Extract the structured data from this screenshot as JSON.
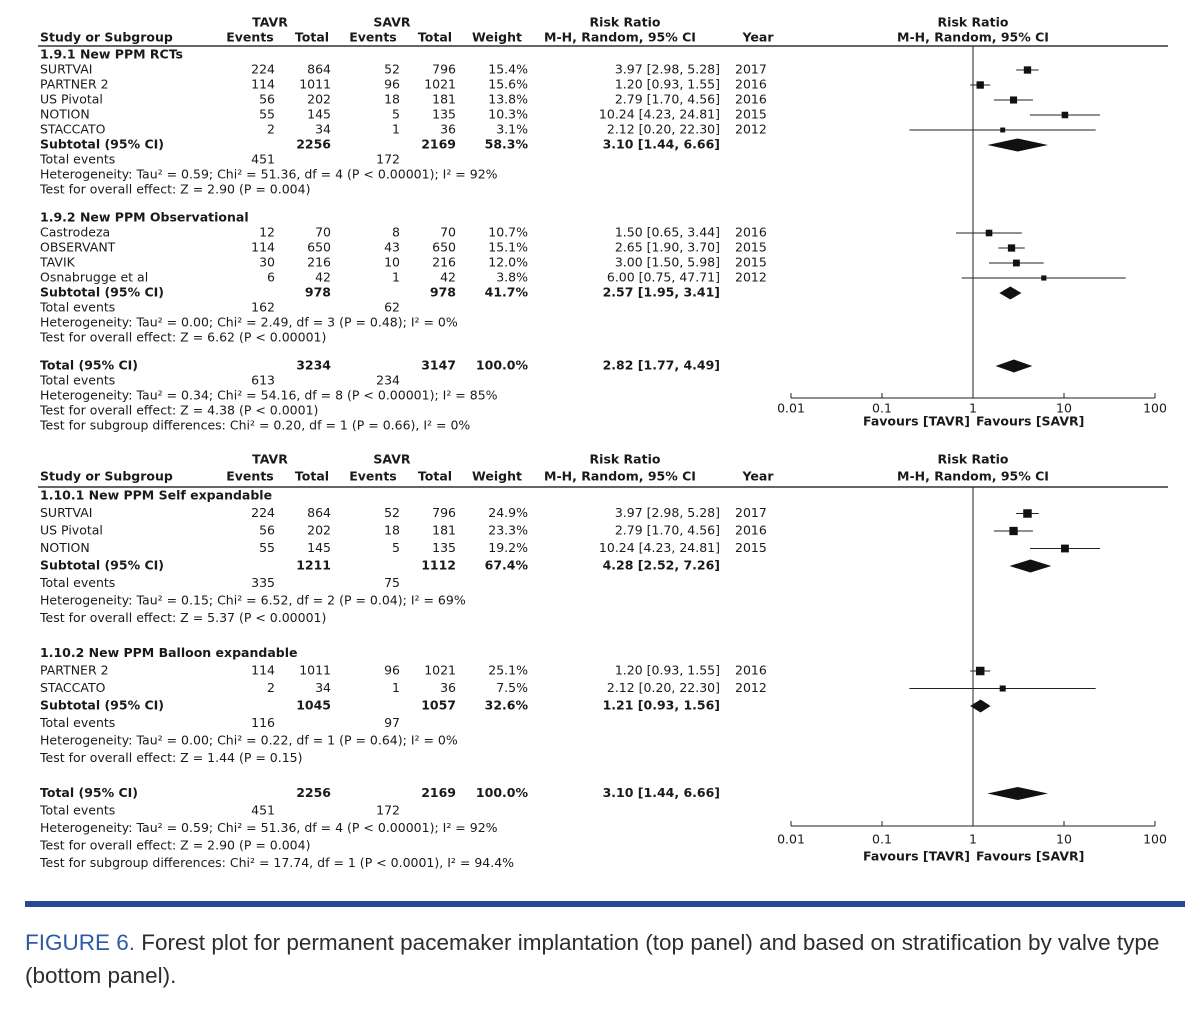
{
  "panels": [
    {
      "header": {
        "group1": "TAVR",
        "group2": "SAVR",
        "effect": "Risk Ratio",
        "plot_title": "Risk Ratio",
        "col_study": "Study or Subgroup",
        "col_events1": "Events",
        "col_total1": "Total",
        "col_events2": "Events",
        "col_total2": "Total",
        "col_weight": "Weight",
        "col_method": "M-H, Random, 95% CI",
        "col_year": "Year",
        "plot_method": "M-H, Random, 95% CI"
      },
      "subgroups": [
        {
          "title": "1.9.1 New PPM RCTs",
          "studies": [
            {
              "name": "SURTVAI",
              "e1": 224,
              "n1": 864,
              "e2": 52,
              "n2": 796,
              "weight": "15.4%",
              "ci": "3.97 [2.98, 5.28]",
              "rr": 3.97,
              "lo": 2.98,
              "hi": 5.28,
              "year": 2017
            },
            {
              "name": "PARTNER 2",
              "e1": 114,
              "n1": 1011,
              "e2": 96,
              "n2": 1021,
              "weight": "15.6%",
              "ci": "1.20 [0.93, 1.55]",
              "rr": 1.2,
              "lo": 0.93,
              "hi": 1.55,
              "year": 2016
            },
            {
              "name": "US Pivotal",
              "e1": 56,
              "n1": 202,
              "e2": 18,
              "n2": 181,
              "weight": "13.8%",
              "ci": "2.79 [1.70, 4.56]",
              "rr": 2.79,
              "lo": 1.7,
              "hi": 4.56,
              "year": 2016
            },
            {
              "name": "NOTION",
              "e1": 55,
              "n1": 145,
              "e2": 5,
              "n2": 135,
              "weight": "10.3%",
              "ci": "10.24 [4.23, 24.81]",
              "rr": 10.24,
              "lo": 4.23,
              "hi": 24.81,
              "year": 2015
            },
            {
              "name": "STACCATO",
              "e1": 2,
              "n1": 34,
              "e2": 1,
              "n2": 36,
              "weight": "3.1%",
              "ci": "2.12 [0.20, 22.30]",
              "rr": 2.12,
              "lo": 0.2,
              "hi": 22.3,
              "year": 2012
            }
          ],
          "subtotal": {
            "label": "Subtotal (95% CI)",
            "n1": 2256,
            "n2": 2169,
            "weight": "58.3%",
            "ci": "3.10 [1.44, 6.66]",
            "rr": 3.1,
            "lo": 1.44,
            "hi": 6.66
          },
          "events": {
            "label": "Total events",
            "e1": 451,
            "e2": 172
          },
          "heterogeneity": "Heterogeneity: Tau² = 0.59; Chi² = 51.36, df = 4 (P < 0.00001); I² = 92%",
          "overall": "Test for overall effect: Z = 2.90 (P = 0.004)"
        },
        {
          "title": "1.9.2 New PPM Observational",
          "studies": [
            {
              "name": "Castrodeza",
              "e1": 12,
              "n1": 70,
              "e2": 8,
              "n2": 70,
              "weight": "10.7%",
              "ci": "1.50 [0.65, 3.44]",
              "rr": 1.5,
              "lo": 0.65,
              "hi": 3.44,
              "year": 2016
            },
            {
              "name": "OBSERVANT",
              "e1": 114,
              "n1": 650,
              "e2": 43,
              "n2": 650,
              "weight": "15.1%",
              "ci": "2.65 [1.90, 3.70]",
              "rr": 2.65,
              "lo": 1.9,
              "hi": 3.7,
              "year": 2015
            },
            {
              "name": "TAVIK",
              "e1": 30,
              "n1": 216,
              "e2": 10,
              "n2": 216,
              "weight": "12.0%",
              "ci": "3.00 [1.50, 5.98]",
              "rr": 3.0,
              "lo": 1.5,
              "hi": 5.98,
              "year": 2015
            },
            {
              "name": "Osnabrugge et al",
              "e1": 6,
              "n1": 42,
              "e2": 1,
              "n2": 42,
              "weight": "3.8%",
              "ci": "6.00 [0.75, 47.71]",
              "rr": 6.0,
              "lo": 0.75,
              "hi": 47.71,
              "year": 2012
            }
          ],
          "subtotal": {
            "label": "Subtotal (95% CI)",
            "n1": 978,
            "n2": 978,
            "weight": "41.7%",
            "ci": "2.57 [1.95, 3.41]",
            "rr": 2.57,
            "lo": 1.95,
            "hi": 3.41
          },
          "events": {
            "label": "Total events",
            "e1": 162,
            "e2": 62
          },
          "heterogeneity": "Heterogeneity: Tau² = 0.00; Chi² = 2.49, df = 3 (P = 0.48); I² = 0%",
          "overall": "Test for overall effect: Z = 6.62 (P < 0.00001)"
        }
      ],
      "total": {
        "label": "Total (95% CI)",
        "n1": 3234,
        "n2": 3147,
        "weight": "100.0%",
        "ci": "2.82 [1.77, 4.49]",
        "rr": 2.82,
        "lo": 1.77,
        "hi": 4.49
      },
      "total_events": {
        "label": "Total events",
        "e1": 613,
        "e2": 234
      },
      "heterogeneity": "Heterogeneity: Tau² = 0.34; Chi² = 54.16, df = 8 (P < 0.00001); I² = 85%",
      "overall": "Test for overall effect: Z = 4.38 (P < 0.0001)",
      "subgroup_diff": "Test for subgroup differences: Chi² = 0.20, df = 1 (P = 0.66), I² = 0%",
      "axis": {
        "log": true,
        "xlim": [
          0.01,
          100
        ],
        "xticks": [
          0.01,
          0.1,
          1,
          10,
          100
        ],
        "left_label": "Favours [TAVR]",
        "right_label": "Favours [SAVR]"
      }
    },
    {
      "header": {
        "group1": "TAVR",
        "group2": "SAVR",
        "effect": "Risk Ratio",
        "plot_title": "Risk Ratio",
        "col_study": "Study or Subgroup",
        "col_events1": "Events",
        "col_total1": "Total",
        "col_events2": "Events",
        "col_total2": "Total",
        "col_weight": "Weight",
        "col_method": "M-H, Random, 95% CI",
        "col_year": "Year",
        "plot_method": "M-H, Random, 95% CI"
      },
      "subgroups": [
        {
          "title": "1.10.1 New PPM Self expandable",
          "studies": [
            {
              "name": "SURTVAI",
              "e1": 224,
              "n1": 864,
              "e2": 52,
              "n2": 796,
              "weight": "24.9%",
              "ci": "3.97 [2.98, 5.28]",
              "rr": 3.97,
              "lo": 2.98,
              "hi": 5.28,
              "year": 2017
            },
            {
              "name": "US Pivotal",
              "e1": 56,
              "n1": 202,
              "e2": 18,
              "n2": 181,
              "weight": "23.3%",
              "ci": "2.79 [1.70, 4.56]",
              "rr": 2.79,
              "lo": 1.7,
              "hi": 4.56,
              "year": 2016
            },
            {
              "name": "NOTION",
              "e1": 55,
              "n1": 145,
              "e2": 5,
              "n2": 135,
              "weight": "19.2%",
              "ci": "10.24 [4.23, 24.81]",
              "rr": 10.24,
              "lo": 4.23,
              "hi": 24.81,
              "year": 2015
            }
          ],
          "subtotal": {
            "label": "Subtotal (95% CI)",
            "n1": 1211,
            "n2": 1112,
            "weight": "67.4%",
            "ci": "4.28 [2.52, 7.26]",
            "rr": 4.28,
            "lo": 2.52,
            "hi": 7.26
          },
          "events": {
            "label": "Total events",
            "e1": 335,
            "e2": 75
          },
          "heterogeneity": "Heterogeneity: Tau² = 0.15; Chi² = 6.52, df = 2 (P = 0.04); I² = 69%",
          "overall": "Test for overall effect: Z = 5.37 (P < 0.00001)"
        },
        {
          "title": "1.10.2 New PPM Balloon expandable",
          "studies": [
            {
              "name": "PARTNER 2",
              "e1": 114,
              "n1": 1011,
              "e2": 96,
              "n2": 1021,
              "weight": "25.1%",
              "ci": "1.20 [0.93, 1.55]",
              "rr": 1.2,
              "lo": 0.93,
              "hi": 1.55,
              "year": 2016
            },
            {
              "name": "STACCATO",
              "e1": 2,
              "n1": 34,
              "e2": 1,
              "n2": 36,
              "weight": "7.5%",
              "ci": "2.12 [0.20, 22.30]",
              "rr": 2.12,
              "lo": 0.2,
              "hi": 22.3,
              "year": 2012
            }
          ],
          "subtotal": {
            "label": "Subtotal (95% CI)",
            "n1": 1045,
            "n2": 1057,
            "weight": "32.6%",
            "ci": "1.21 [0.93, 1.56]",
            "rr": 1.21,
            "lo": 0.93,
            "hi": 1.56
          },
          "events": {
            "label": "Total events",
            "e1": 116,
            "e2": 97
          },
          "heterogeneity": "Heterogeneity: Tau² = 0.00; Chi² = 0.22, df = 1 (P = 0.64); I² = 0%",
          "overall": "Test for overall effect: Z = 1.44 (P = 0.15)"
        }
      ],
      "total": {
        "label": "Total (95% CI)",
        "n1": 2256,
        "n2": 2169,
        "weight": "100.0%",
        "ci": "3.10 [1.44, 6.66]",
        "rr": 3.1,
        "lo": 1.44,
        "hi": 6.66
      },
      "total_events": {
        "label": "Total events",
        "e1": 451,
        "e2": 172
      },
      "heterogeneity": "Heterogeneity: Tau² = 0.59; Chi² = 51.36, df = 4 (P < 0.00001); I² = 92%",
      "overall": "Test for overall effect: Z = 2.90 (P = 0.004)",
      "subgroup_diff": "Test for subgroup differences: Chi² = 17.74, df = 1 (P < 0.0001), I² = 94.4%",
      "axis": {
        "log": true,
        "xlim": [
          0.01,
          100
        ],
        "xticks": [
          0.01,
          0.1,
          1,
          10,
          100
        ],
        "left_label": "Favours [TAVR]",
        "right_label": "Favours [SAVR]"
      }
    }
  ],
  "caption": {
    "label": "FIGURE 6.",
    "text": "Forest plot for permanent pacemaker implantation (top panel) and based on stratification by valve type (bottom panel)."
  }
}
